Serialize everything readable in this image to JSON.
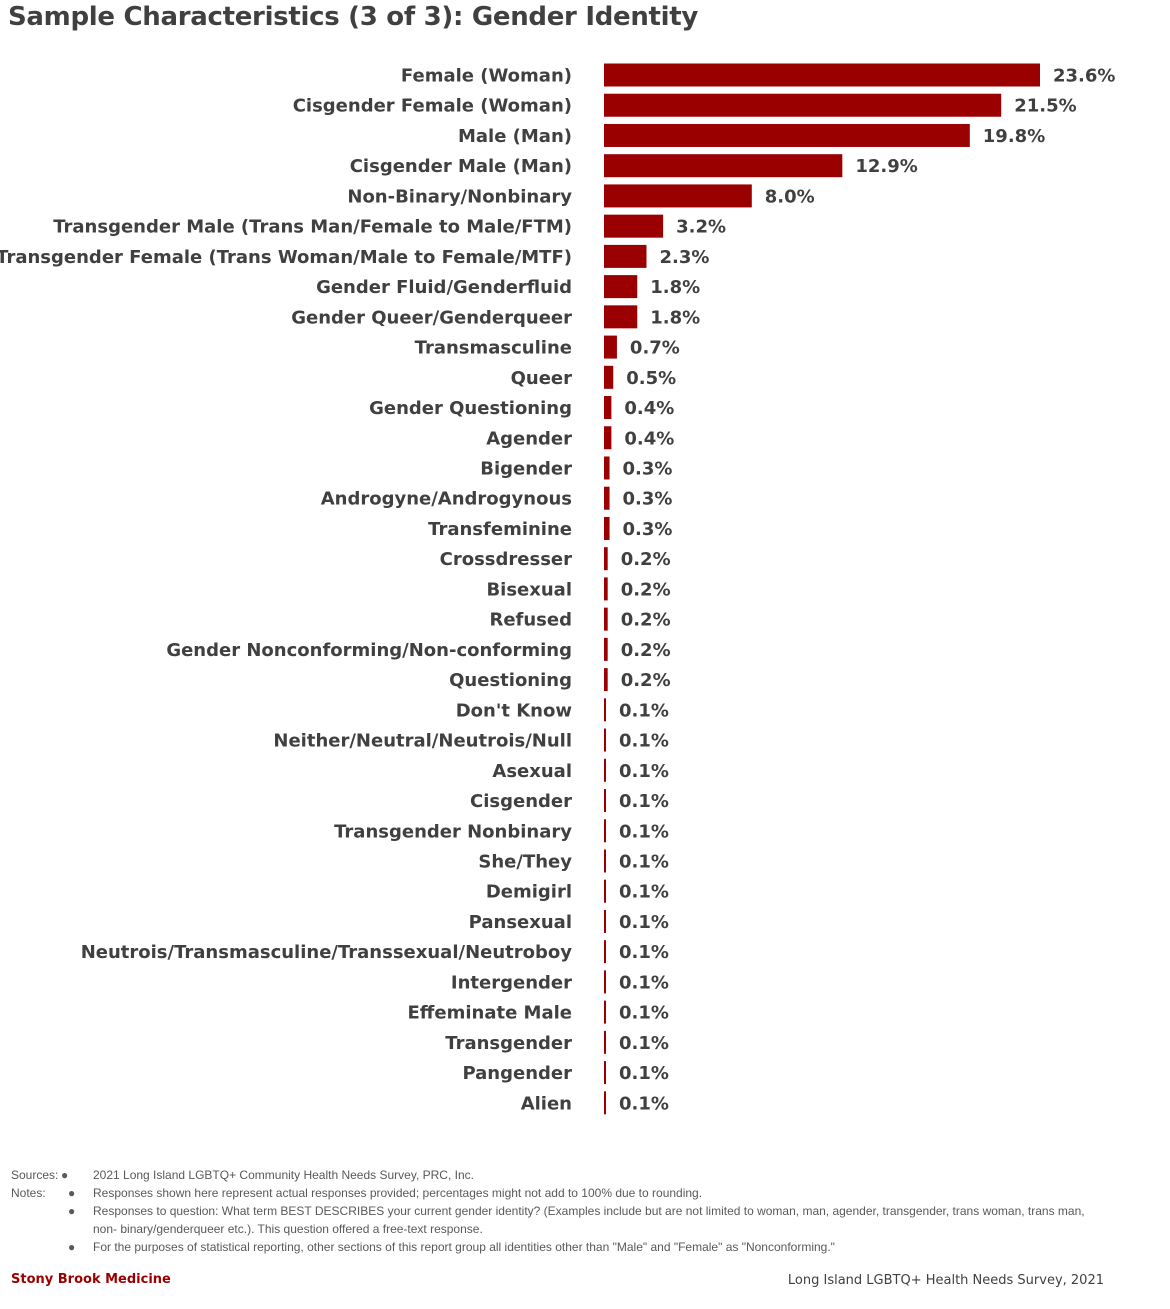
{
  "chart_data": {
    "type": "bar",
    "orientation": "horizontal",
    "title": "Sample Characteristics (3 of 3): Gender Identity",
    "unit": "%",
    "bar_color": "#9b0000",
    "categories": [
      "Female (Woman)",
      "Cisgender Female (Woman)",
      "Male (Man)",
      "Cisgender Male (Man)",
      "Non-Binary/Nonbinary",
      "Transgender Male (Trans Man/Female to Male/FTM)",
      "Transgender Female (Trans Woman/Male to Female/MTF)",
      "Gender Fluid/Genderfluid",
      "Gender Queer/Genderqueer",
      "Transmasculine",
      "Queer",
      "Gender Questioning",
      "Agender",
      "Bigender",
      "Androgyne/Androgynous",
      "Transfeminine",
      "Crossdresser",
      "Bisexual",
      "Refused",
      "Gender Nonconforming/Non-conforming",
      "Questioning",
      "Don't Know",
      "Neither/Neutral/Neutrois/Null",
      "Asexual",
      "Cisgender",
      "Transgender Nonbinary",
      "She/They",
      "Demigirl",
      "Pansexual",
      "Neutrois/Transmasculine/Transsexual/Neutroboy",
      "Intergender",
      "Effeminate Male",
      "Transgender",
      "Pangender",
      "Alien"
    ],
    "values": [
      23.6,
      21.5,
      19.8,
      12.9,
      8.0,
      3.2,
      2.3,
      1.8,
      1.8,
      0.7,
      0.5,
      0.4,
      0.4,
      0.3,
      0.3,
      0.3,
      0.2,
      0.2,
      0.2,
      0.2,
      0.2,
      0.1,
      0.1,
      0.1,
      0.1,
      0.1,
      0.1,
      0.1,
      0.1,
      0.1,
      0.1,
      0.1,
      0.1,
      0.1,
      0.1
    ],
    "value_labels": [
      "23.6%",
      "21.5%",
      "19.8%",
      "12.9%",
      "8.0%",
      "3.2%",
      "2.3%",
      "1.8%",
      "1.8%",
      "0.7%",
      "0.5%",
      "0.4%",
      "0.4%",
      "0.3%",
      "0.3%",
      "0.3%",
      "0.2%",
      "0.2%",
      "0.2%",
      "0.2%",
      "0.2%",
      "0.1%",
      "0.1%",
      "0.1%",
      "0.1%",
      "0.1%",
      "0.1%",
      "0.1%",
      "0.1%",
      "0.1%",
      "0.1%",
      "0.1%",
      "0.1%",
      "0.1%",
      "0.1%"
    ]
  },
  "notes": {
    "sources_key": "Sources:",
    "notes_key": "Notes:",
    "bullet": "●",
    "source_text": "2021 Long Island LGBTQ+ Community Health Needs Survey, PRC, Inc.",
    "items": [
      "Responses shown here represent actual responses provided; percentages might not add to 100% due to rounding.",
      "Responses to question: What term BEST DESCRIBES your current gender identity? (Examples include but are not limited to woman, man, agender, transgender, trans woman, trans man, non- binary/genderqueer etc.). This question offered a free-text response.",
      "For the purposes of statistical reporting, other sections of this report group all identities other than \"Male\" and \"Female\" as \"Nonconforming.\""
    ]
  },
  "footer": {
    "brand": "Stony Brook Medicine",
    "survey": "Long Island LGBTQ+ Health Needs Survey, 2021"
  }
}
